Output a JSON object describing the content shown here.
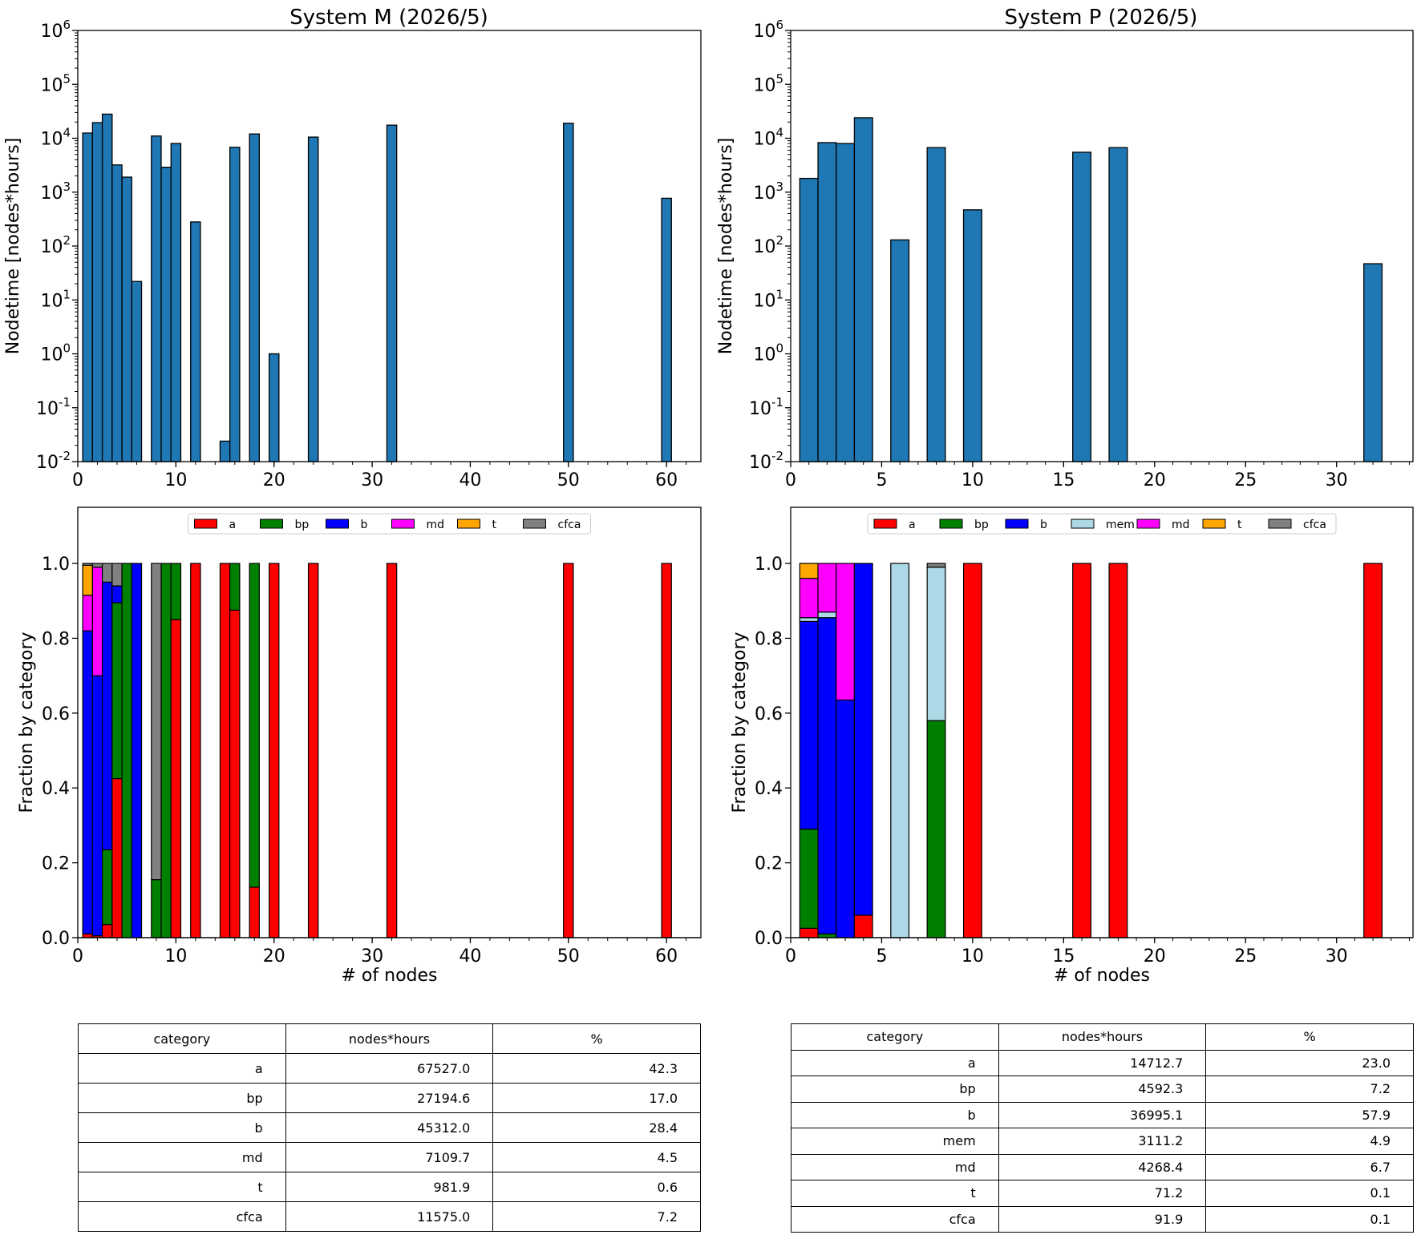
{
  "charts": {
    "m": {
      "title": "System M (2026/5)",
      "type": "bar",
      "xlabel": "# of nodes",
      "ylabel_top": "Nodetime [nodes*hours]",
      "ylabel_bottom": "Fraction by category",
      "xlim": [
        0,
        63.5
      ],
      "xticks": [
        "0",
        "10",
        "20",
        "30",
        "40",
        "50",
        "60"
      ],
      "bar_width": 1,
      "nodes": [
        1,
        2,
        3,
        4,
        5,
        6,
        8,
        9,
        10,
        12,
        15,
        16,
        18,
        20,
        24,
        32,
        50,
        60
      ],
      "nodetime": [
        12500,
        19500,
        28000,
        3200,
        1900,
        22,
        11000,
        2900,
        8000,
        280,
        0.024,
        6800,
        12000,
        1,
        10500,
        17500,
        19000,
        770
      ],
      "categories": [
        "a",
        "bp",
        "b",
        "md",
        "t",
        "cfca"
      ],
      "colors": [
        "#ff0000",
        "#008000",
        "#0000ff",
        "#ff00ff",
        "#ffa500",
        "#808080"
      ],
      "fractions": [
        [
          0.01,
          0,
          0.81,
          0.095,
          0.08,
          0.005
        ],
        [
          0.005,
          0,
          0.695,
          0.29,
          0,
          0.01
        ],
        [
          0.035,
          0.2,
          0.715,
          0,
          0,
          0.05
        ],
        [
          0.425,
          0.47,
          0.045,
          0,
          0,
          0.06
        ],
        [
          0,
          1,
          0,
          0,
          0,
          0
        ],
        [
          0,
          0,
          1,
          0,
          0,
          0
        ],
        [
          0,
          0.155,
          0,
          0,
          0,
          0.845
        ],
        [
          0,
          1,
          0,
          0,
          0,
          0
        ],
        [
          0.85,
          0.15,
          0,
          0,
          0,
          0
        ],
        [
          1,
          0,
          0,
          0,
          0,
          0
        ],
        [
          1,
          0,
          0,
          0,
          0,
          0
        ],
        [
          0.875,
          0.125,
          0,
          0,
          0,
          0
        ],
        [
          0.135,
          0.865,
          0,
          0,
          0,
          0
        ],
        [
          1,
          0,
          0,
          0,
          0,
          0
        ],
        [
          1,
          0,
          0,
          0,
          0,
          0
        ],
        [
          1,
          0,
          0,
          0,
          0,
          0
        ],
        [
          1,
          0,
          0,
          0,
          0,
          0
        ],
        [
          1,
          0,
          0,
          0,
          0,
          0
        ]
      ]
    },
    "p": {
      "title": "System P (2026/5)",
      "type": "bar",
      "xlabel": "# of nodes",
      "ylabel_top": "Nodetime [nodes*hours]",
      "ylabel_bottom": "Fraction by category",
      "xlim": [
        0,
        34.2
      ],
      "xticks": [
        "0",
        "5",
        "10",
        "15",
        "20",
        "25",
        "30"
      ],
      "bar_width": 1,
      "nodes": [
        1,
        2,
        3,
        4,
        6,
        8,
        10,
        16,
        18,
        32
      ],
      "nodetime": [
        1800,
        8300,
        8000,
        24000,
        130,
        6700,
        470,
        5500,
        6700,
        47
      ],
      "categories": [
        "a",
        "bp",
        "b",
        "mem",
        "md",
        "t",
        "cfca"
      ],
      "colors": [
        "#ff0000",
        "#008000",
        "#0000ff",
        "#add8e6",
        "#ff00ff",
        "#ffa500",
        "#808080"
      ],
      "fractions": [
        [
          0.025,
          0.265,
          0.555,
          0.01,
          0.105,
          0.04,
          0
        ],
        [
          0,
          0.01,
          0.845,
          0.015,
          0.13,
          0,
          0
        ],
        [
          0,
          0,
          0.635,
          0,
          0.365,
          0,
          0
        ],
        [
          0.06,
          0,
          0.94,
          0,
          0,
          0,
          0
        ],
        [
          0,
          0,
          0,
          1,
          0,
          0,
          0
        ],
        [
          0,
          0.58,
          0,
          0.41,
          0,
          0,
          0.01
        ],
        [
          1,
          0,
          0,
          0,
          0,
          0,
          0
        ],
        [
          1,
          0,
          0,
          0,
          0,
          0,
          0
        ],
        [
          1,
          0,
          0,
          0,
          0,
          0,
          0
        ],
        [
          1,
          0,
          0,
          0,
          0,
          0,
          0
        ]
      ]
    }
  },
  "tables": {
    "m": {
      "headers": [
        "category",
        "nodes*hours",
        "%"
      ],
      "rows": [
        [
          "a",
          "67527.0",
          "42.3"
        ],
        [
          "bp",
          "27194.6",
          "17.0"
        ],
        [
          "b",
          "45312.0",
          "28.4"
        ],
        [
          "md",
          "7109.7",
          "4.5"
        ],
        [
          "t",
          "981.9",
          "0.6"
        ],
        [
          "cfca",
          "11575.0",
          "7.2"
        ]
      ]
    },
    "p": {
      "headers": [
        "category",
        "nodes*hours",
        "%"
      ],
      "rows": [
        [
          "a",
          "14712.7",
          "23.0"
        ],
        [
          "bp",
          "4592.3",
          "7.2"
        ],
        [
          "b",
          "36995.1",
          "57.9"
        ],
        [
          "mem",
          "3111.2",
          "4.9"
        ],
        [
          "md",
          "4268.4",
          "6.7"
        ],
        [
          "t",
          "71.2",
          "0.1"
        ],
        [
          "cfca",
          "91.9",
          "0.1"
        ]
      ]
    }
  },
  "log_ticks": [
    "10^-2",
    "10^-1",
    "10^0",
    "10^1",
    "10^2",
    "10^3",
    "10^4",
    "10^5",
    "10^6"
  ],
  "frac_ticks": [
    "0.0",
    "0.2",
    "0.4",
    "0.6",
    "0.8",
    "1.0"
  ]
}
